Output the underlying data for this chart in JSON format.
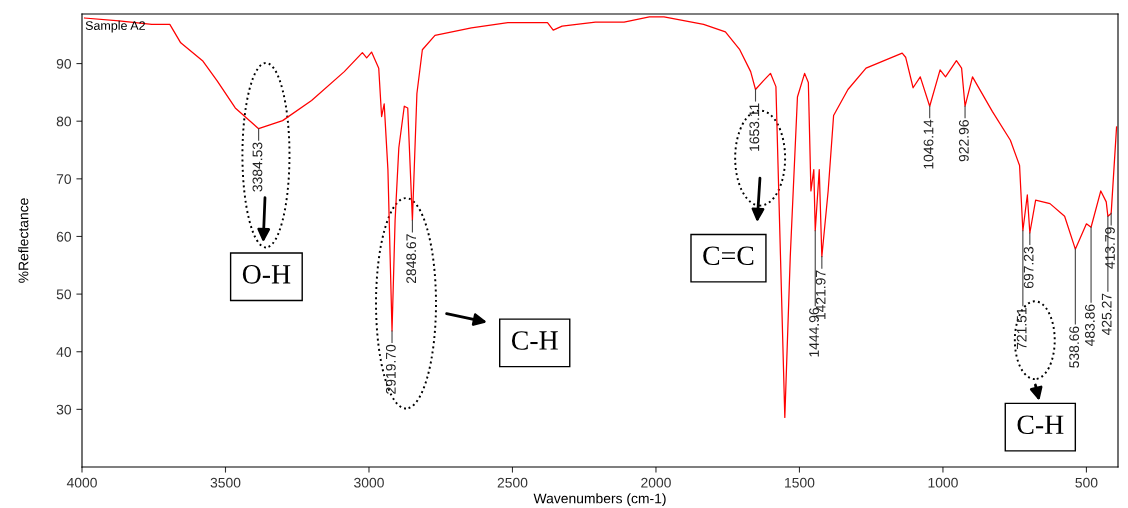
{
  "chart_data": {
    "type": "line",
    "xlabel": "Wavenumbers (cm-1)",
    "ylabel": "%Reflectance",
    "xlim": [
      4000,
      390
    ],
    "ylim": [
      20,
      98.6
    ],
    "xticks": [
      4000,
      3500,
      3000,
      2500,
      2000,
      1500,
      1000,
      500
    ],
    "yticks": [
      30,
      40,
      50,
      60,
      70,
      80,
      90
    ],
    "grid": false,
    "marker": "none",
    "line_style": "solid",
    "series": [
      {
        "color": "#ff0000",
        "x": [
          3991,
          3871,
          3757,
          3694,
          3656,
          3580,
          3529,
          3466,
          3384.53,
          3301,
          3200,
          3086,
          3023,
          3008,
          2991,
          2966,
          2956,
          2947,
          2934,
          2919.7,
          2909,
          2896,
          2877,
          2865,
          2848.67,
          2833,
          2814,
          2770,
          2643,
          2516,
          2378,
          2358,
          2327,
          2211,
          2111,
          2023,
          1972,
          1834,
          1758,
          1708,
          1670,
          1653.11,
          1626,
          1601,
          1582,
          1551,
          1532,
          1507,
          1482,
          1469,
          1460,
          1450,
          1444.96,
          1431,
          1421.97,
          1400,
          1381,
          1331,
          1268,
          1205,
          1142,
          1130,
          1104,
          1079,
          1046.14,
          1010,
          991,
          953,
          935,
          922.96,
          897,
          828,
          765,
          733,
          721.51,
          706,
          697.23,
          677,
          627,
          576,
          538.66,
          500,
          483.86,
          450,
          431,
          425.27,
          413.79,
          395
        ],
        "values": [
          97.9,
          97.4,
          96.8,
          96.8,
          93.6,
          90.5,
          87,
          82.3,
          78.7,
          80.1,
          83.6,
          88.6,
          91.9,
          91,
          92,
          89.2,
          80.8,
          83,
          71.6,
          43.6,
          62.8,
          75.4,
          82.6,
          82.3,
          62.8,
          84.8,
          92.4,
          94.9,
          96.2,
          97.1,
          97.1,
          95.8,
          96.5,
          97.2,
          97.2,
          98.1,
          98.1,
          96.8,
          95.5,
          92.4,
          88.6,
          85.5,
          87,
          88.3,
          86,
          28.6,
          56.5,
          84.2,
          88.3,
          86.7,
          67.9,
          71.6,
          61,
          71.6,
          56.5,
          67.9,
          81,
          85.5,
          89.2,
          90.5,
          91.8,
          91.1,
          85.8,
          87.7,
          82.6,
          88.9,
          87.7,
          90.5,
          89.2,
          82.6,
          87.7,
          81.7,
          76.7,
          72.3,
          61,
          67.2,
          60.6,
          66.3,
          65.7,
          63.5,
          57.8,
          62.2,
          61.6,
          67.9,
          66,
          63.5,
          64,
          79
        ]
      }
    ],
    "annotations": [
      "Sample A2",
      {
        "text": "3384.53",
        "x": 3384.53,
        "y": 78.7
      },
      {
        "text": "2919.70",
        "x": 2919.7,
        "y": 43.6
      },
      {
        "text": "2848.67",
        "x": 2848.67,
        "y": 62.8
      },
      {
        "text": "1653.11",
        "x": 1653.11,
        "y": 85.5
      },
      {
        "text": "1444.96",
        "x": 1444.96,
        "y": 61
      },
      {
        "text": "1421.97",
        "x": 1421.97,
        "y": 56.5
      },
      {
        "text": "1046.14",
        "x": 1046.14,
        "y": 82.6
      },
      {
        "text": "922.96",
        "x": 922.96,
        "y": 82.6
      },
      {
        "text": "721.51",
        "x": 721.51,
        "y": 61
      },
      {
        "text": "697.23",
        "x": 697.23,
        "y": 60.6
      },
      {
        "text": "538.66",
        "x": 538.66,
        "y": 57.8
      },
      {
        "text": "483.86",
        "x": 483.86,
        "y": 61.6
      },
      {
        "text": "425.27",
        "x": 425.27,
        "y": 63.5
      },
      {
        "text": "413.79",
        "x": 413.79,
        "y": 64
      },
      "O-H",
      "C-H",
      "C=C",
      "C-H"
    ]
  }
}
